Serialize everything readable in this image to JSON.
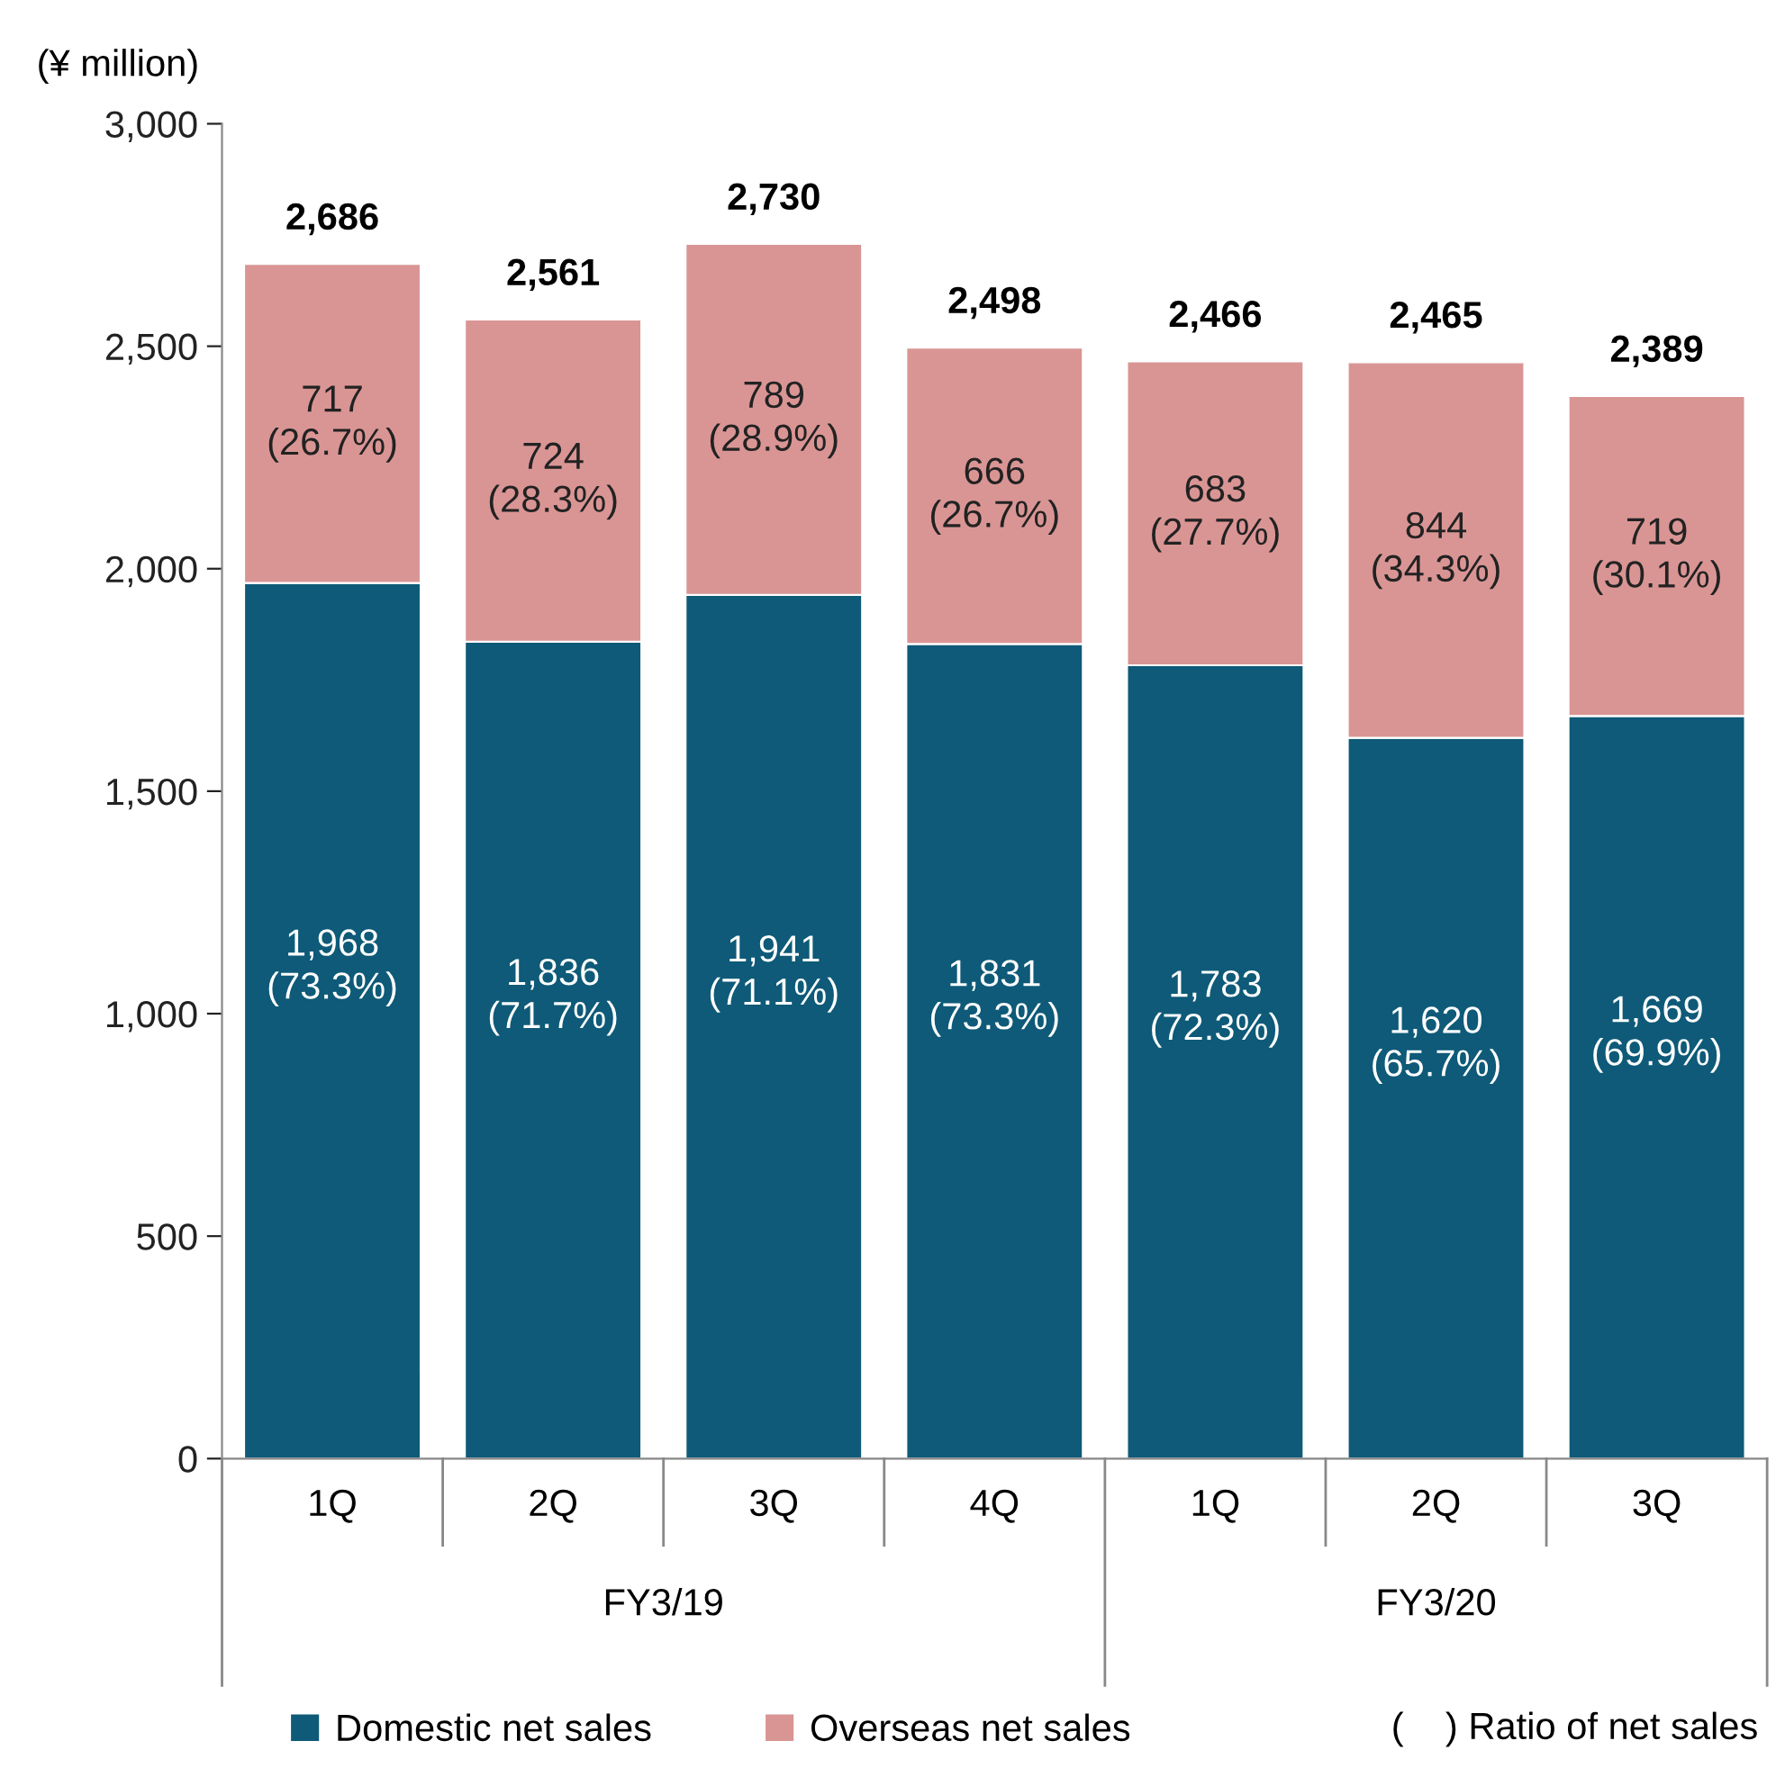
{
  "chart_data": {
    "type": "bar",
    "stacked": true,
    "ylabel": "(¥ million)",
    "categories": [
      "1Q",
      "2Q",
      "3Q",
      "4Q",
      "1Q",
      "2Q",
      "3Q"
    ],
    "series": [
      {
        "name": "Domestic net sales",
        "color": "#0e5a78",
        "values": [
          1968,
          1836,
          1941,
          1831,
          1783,
          1620,
          1669
        ],
        "value_labels": [
          "1,968\n(73.3%)",
          "1,836\n(71.7%)",
          "1,941\n(71.1%)",
          "1,831\n(73.3%)",
          "1,783\n(72.3%)",
          "1,620\n(65.7%)",
          "1,669\n(69.9%)"
        ]
      },
      {
        "name": "Overseas net sales",
        "color": "#d99594",
        "values": [
          717,
          724,
          789,
          666,
          683,
          844,
          719
        ],
        "value_labels": [
          "717\n(26.7%)",
          "724\n(28.3%)",
          "789\n(28.9%)",
          "666\n(26.7%)",
          "683\n(27.7%)",
          "844\n(34.3%)",
          "719\n(30.1%)"
        ]
      }
    ],
    "totals": [
      "2,686",
      "2,561",
      "2,730",
      "2,498",
      "2,466",
      "2,465",
      "2,389"
    ],
    "ylim": [
      0,
      3000
    ],
    "yticks": [
      {
        "value": 0,
        "label": "0"
      },
      {
        "value": 500,
        "label": "500"
      },
      {
        "value": 1000,
        "label": "1,000"
      },
      {
        "value": 1500,
        "label": "1,500"
      },
      {
        "value": 2000,
        "label": "2,000"
      },
      {
        "value": 2500,
        "label": "2,500"
      },
      {
        "value": 3000,
        "label": "3,000"
      }
    ],
    "grid": false,
    "legend": "bottom",
    "annotations": [
      "FY3/19",
      "FY3/20",
      "(    ) Ratio of net sales"
    ]
  }
}
